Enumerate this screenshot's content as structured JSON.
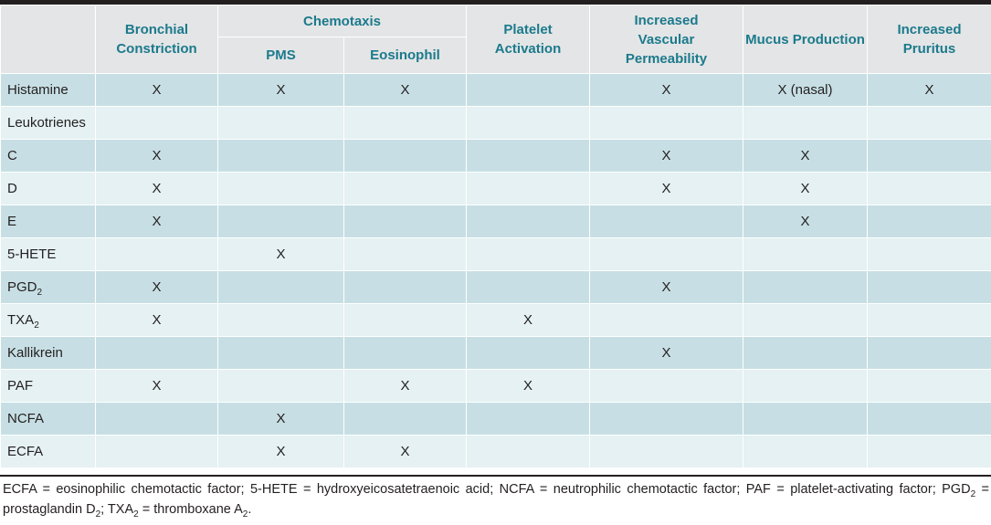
{
  "table": {
    "headers": {
      "col_bronchial": "Bronchial Constriction",
      "group_chemotaxis": "Chemotaxis",
      "col_pms": "PMS",
      "col_eosinophil": "Eosinophil",
      "col_platelet": "Platelet Activation",
      "col_vascular": "Increased Vascular Permeability",
      "col_mucus": "Mucus Production",
      "col_pruritus": "Increased Pruritus"
    },
    "rows": [
      {
        "label": "Histamine",
        "label_sub": "",
        "cells": [
          "X",
          "X",
          "X",
          "",
          "X",
          "X (nasal)",
          "X"
        ]
      },
      {
        "label": "Leukotrienes",
        "label_sub": "",
        "cells": [
          "",
          "",
          "",
          "",
          "",
          "",
          ""
        ]
      },
      {
        "label": "C",
        "label_sub": "",
        "cells": [
          "X",
          "",
          "",
          "",
          "X",
          "X",
          ""
        ]
      },
      {
        "label": "D",
        "label_sub": "",
        "cells": [
          "X",
          "",
          "",
          "",
          "X",
          "X",
          ""
        ]
      },
      {
        "label": "E",
        "label_sub": "",
        "cells": [
          "X",
          "",
          "",
          "",
          "",
          "X",
          ""
        ]
      },
      {
        "label": "5-HETE",
        "label_sub": "",
        "cells": [
          "",
          "X",
          "",
          "",
          "",
          "",
          ""
        ]
      },
      {
        "label": "PGD",
        "label_sub": "2",
        "cells": [
          "X",
          "",
          "",
          "",
          "X",
          "",
          ""
        ]
      },
      {
        "label": "TXA",
        "label_sub": "2",
        "cells": [
          "X",
          "",
          "",
          "X",
          "",
          "",
          ""
        ]
      },
      {
        "label": "Kallikrein",
        "label_sub": "",
        "cells": [
          "",
          "",
          "",
          "",
          "X",
          "",
          ""
        ]
      },
      {
        "label": "PAF",
        "label_sub": "",
        "cells": [
          "X",
          "",
          "X",
          "X",
          "",
          "",
          ""
        ]
      },
      {
        "label": "NCFA",
        "label_sub": "",
        "cells": [
          "",
          "X",
          "",
          "",
          "",
          "",
          ""
        ]
      },
      {
        "label": "ECFA",
        "label_sub": "",
        "cells": [
          "",
          "X",
          "X",
          "",
          "",
          "",
          ""
        ]
      }
    ]
  },
  "footnote": {
    "part1": "ECFA = eosinophilic chemotactic factor; 5-HETE = hydroxyeicosatetraenoic acid; NCFA = neutrophilic chemotactic factor; PAF = platelet-activating factor; PGD",
    "sub1": "2",
    "part2": " = prostaglandin D",
    "sub2": "2",
    "part3": "; TXA",
    "sub3": "2",
    "part4": " = thromboxane A",
    "sub4": "2",
    "part5": "."
  }
}
